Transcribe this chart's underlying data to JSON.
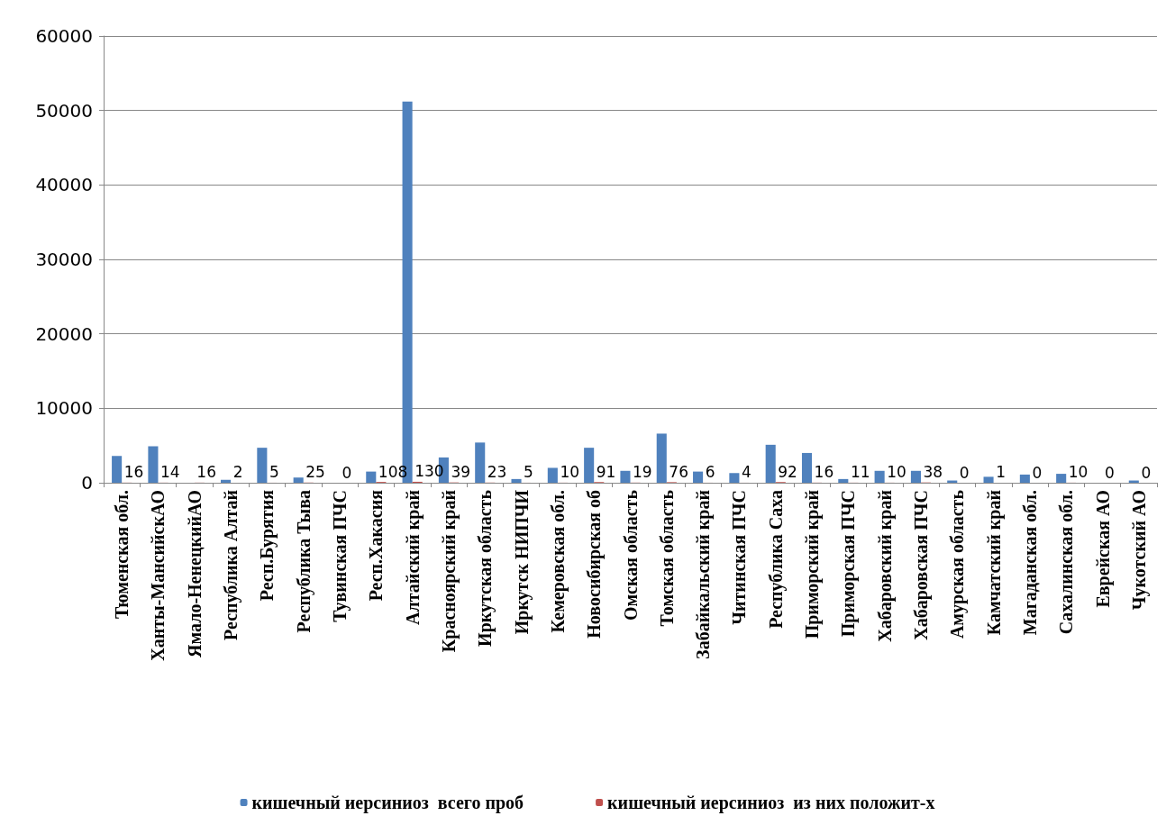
{
  "chart_data": {
    "type": "bar",
    "categories": [
      "Тюменская обл.",
      "Ханты-МансийскАО",
      "Ямало-НенецкийАО",
      "Республика Алтай",
      "Респ.Бурятия",
      "Республика Тыва",
      "Тувинская ПЧС",
      "Респ.Хакасия",
      "Алтайский край",
      "Красноярский край",
      "Иркутская область",
      "Иркутск НИПЧИ",
      "Кемеровская обл.",
      "Новосибирская об",
      "Омская область",
      "Томская область",
      "Забайкальский край",
      "Читинская ПЧС",
      "Республика Саха",
      "Приморский край",
      "Приморская ПЧС",
      "Хабаровский край",
      "Хабаровская ПЧС",
      "Амурская область",
      "Камчатский край",
      "Магаданская обл.",
      "Сахалинская обл.",
      "Еврейская АО",
      "Чукотский АО"
    ],
    "series": [
      {
        "name": "кишечный иерсиниоз  всего проб",
        "color": "#4f81bd",
        "values": [
          3600,
          4900,
          0,
          400,
          4700,
          700,
          0,
          1500,
          51200,
          3400,
          5400,
          500,
          2000,
          4700,
          1600,
          6600,
          1500,
          1300,
          5100,
          4000,
          500,
          1600,
          1600,
          300,
          800,
          1100,
          1200,
          0,
          300
        ]
      },
      {
        "name": "кишечный иерсиниоз  из них положит-х",
        "color": "#c0504d",
        "values": [
          16,
          14,
          16,
          2,
          5,
          25,
          0,
          108,
          130,
          39,
          23,
          5,
          10,
          91,
          19,
          76,
          6,
          4,
          92,
          16,
          11,
          10,
          38,
          0,
          1,
          0,
          10,
          0,
          0
        ],
        "data_labels": true
      }
    ],
    "ylim": [
      0,
      60000
    ],
    "yticks": [
      0,
      10000,
      20000,
      30000,
      40000,
      50000,
      60000
    ],
    "grid": "y",
    "legend": "bottom"
  }
}
